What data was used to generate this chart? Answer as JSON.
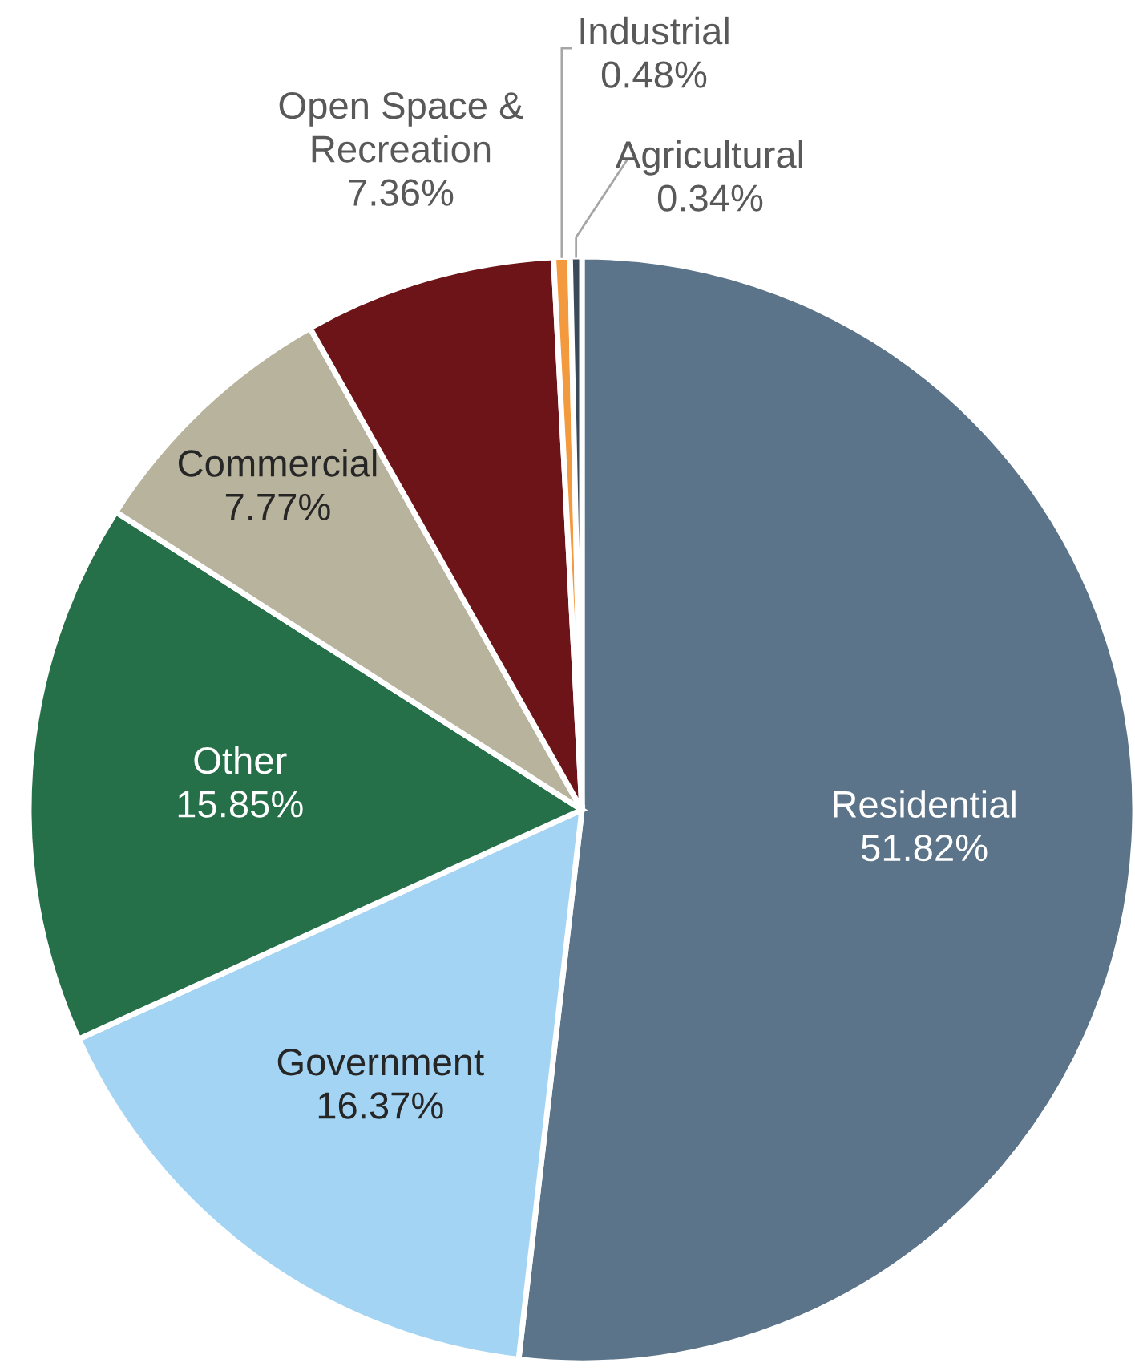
{
  "chart_data": {
    "type": "pie",
    "categories": [
      "Residential",
      "Government",
      "Other",
      "Commercial",
      "Open Space &\nRecreation",
      "Industrial",
      "Agricultural"
    ],
    "values": [
      51.82,
      16.37,
      15.85,
      7.77,
      7.36,
      0.48,
      0.34
    ],
    "value_labels": [
      "51.82%",
      "16.37%",
      "15.85%",
      "7.77%",
      "7.36%",
      "0.48%",
      "0.34%"
    ],
    "colors": [
      "#5b7489",
      "#a3d4f3",
      "#256f49",
      "#b8b39c",
      "#6c1418",
      "#f39a3e",
      "#3a4a5a"
    ]
  }
}
